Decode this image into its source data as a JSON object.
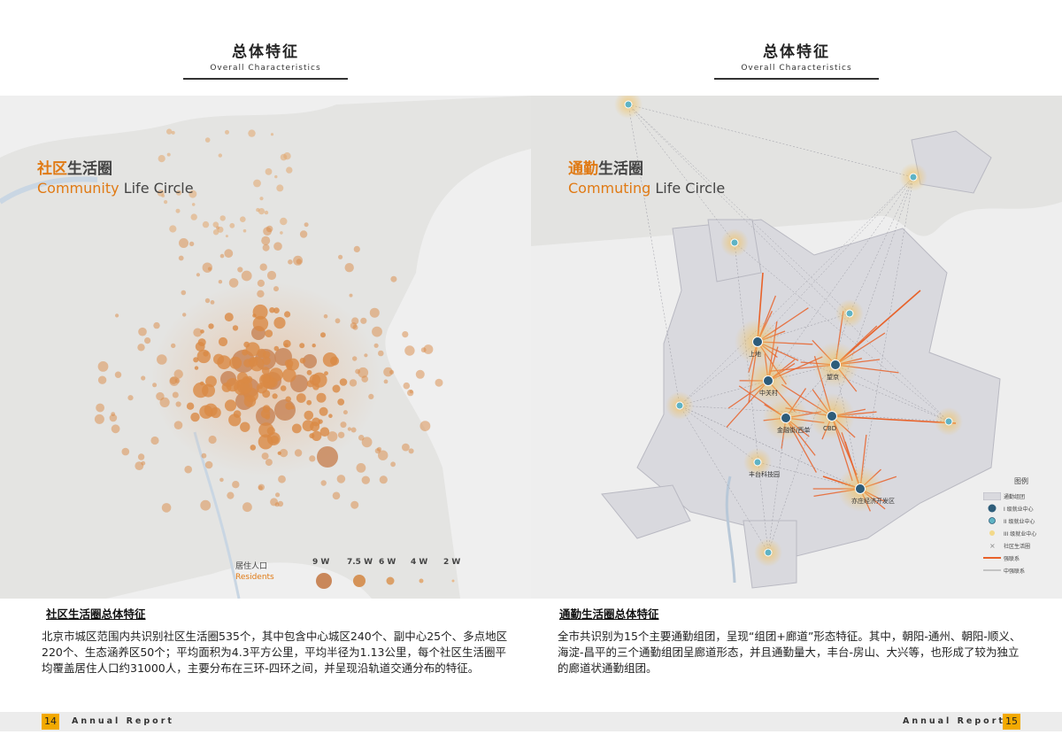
{
  "left_page": {
    "header": {
      "title_zh": "总体特征",
      "title_en": "Overall Characteristics"
    },
    "map": {
      "title_zh_accent": "社区",
      "title_zh_rest": "生活圈",
      "title_en_accent": "Community",
      "title_en_rest": " Life Circle",
      "residents_label_zh": "居住人口",
      "residents_label_en": "Residents",
      "size_legend": [
        "9 W",
        "7.5 W",
        "6 W",
        "4 W",
        "2 W"
      ]
    },
    "section_title": "社区生活圈总体特征",
    "body": "北京市城区范围内共识别社区生活圈535个，其中包含中心城区240个、副中心25个、多点地区220个、生态涵养区50个；平均面积为4.3平方公里，平均半径为1.13公里，每个社区生活圈平均覆盖居住人口约31000人，主要分布在三环-四环之间，并呈现沿轨道交通分布的特征。",
    "page_number": "14",
    "footer_label": "Annual Report"
  },
  "right_page": {
    "header": {
      "title_zh": "总体特征",
      "title_en": "Overall Characteristics"
    },
    "map": {
      "title_zh_accent": "通勤",
      "title_zh_rest": "生活圈",
      "title_en_accent": "Commuting",
      "title_en_rest": " Life Circle",
      "node_labels": [
        "上地",
        "望京",
        "中关村",
        "金融街/西单",
        "CBD",
        "丰台科技园",
        "亦庄经济开发区"
      ],
      "legend": {
        "title": "图例",
        "items": [
          "通勤组团",
          "I 级就业中心",
          "II 级就业中心",
          "III 级就业中心",
          "社区生活圈",
          "强联系",
          "中强联系"
        ]
      }
    },
    "section_title": "通勤生活圈总体特征",
    "body": "全市共识别为15个主要通勤组团，呈现“组团+廊道”形态特征。其中，朝阳-通州、朝阳-顺义、海淀-昌平的三个通勤组团呈廊道形态，并且通勤量大，丰台-房山、大兴等，也形成了较为独立的廊道状通勤组团。",
    "page_number": "15",
    "footer_label": "Annual Report"
  },
  "colors": {
    "accent_orange": "#e07a14",
    "bubble_orange": "#d98a45",
    "page_number_bg": "#f2a900",
    "employment_center_dark": "#2e5d7a",
    "employment_center_teal": "#5fb3c4",
    "commute_group_fill": "#d9d9de",
    "strong_link": "#e8622a"
  }
}
